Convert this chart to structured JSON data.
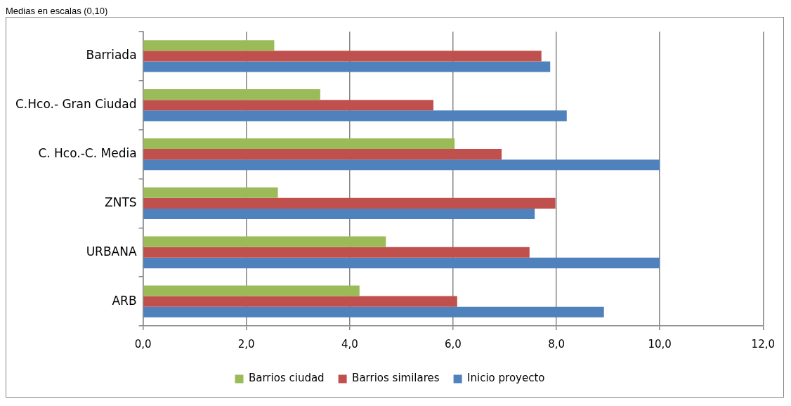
{
  "chart_data": {
    "type": "bar",
    "orientation": "horizontal",
    "title": "Medias en escalas (0,10)",
    "categories": [
      "Barriada",
      "C.Hco.- Gran Ciudad",
      "C. Hco.-C. Media",
      "ZNTS",
      "URBANA",
      "ARB"
    ],
    "series": [
      {
        "name": "Barrios ciudad",
        "color": "#9bbb59",
        "values": [
          2.54,
          3.43,
          6.03,
          2.61,
          4.7,
          4.19
        ]
      },
      {
        "name": "Barrios similares",
        "color": "#c0504d",
        "values": [
          7.71,
          5.62,
          6.94,
          7.98,
          7.48,
          6.08
        ]
      },
      {
        "name": "Inicio proyecto",
        "color": "#4f81bd",
        "values": [
          7.88,
          8.2,
          10.0,
          7.58,
          10.0,
          8.92
        ]
      }
    ],
    "xlim": [
      0,
      12
    ],
    "xticks": [
      {
        "value": 0,
        "label": "0,0"
      },
      {
        "value": 2,
        "label": "2,0"
      },
      {
        "value": 4,
        "label": "4,0"
      },
      {
        "value": 6,
        "label": "6,0"
      },
      {
        "value": 8,
        "label": "8,0"
      },
      {
        "value": 10,
        "label": "10,0"
      },
      {
        "value": 12,
        "label": "12,0"
      }
    ],
    "grid": "x",
    "legend": "bottom"
  }
}
